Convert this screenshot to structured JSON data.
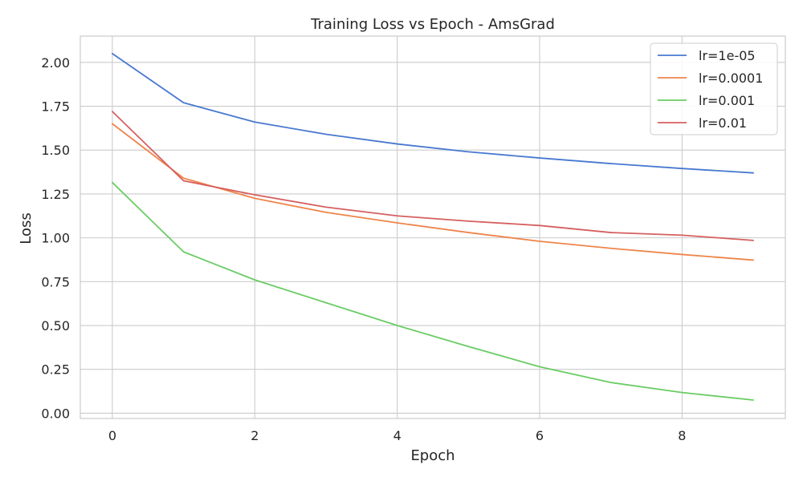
{
  "chart_data": {
    "type": "line",
    "title": "Training Loss vs Epoch - AmsGrad",
    "xlabel": "Epoch",
    "ylabel": "Loss",
    "x": [
      0,
      1,
      2,
      3,
      4,
      5,
      6,
      7,
      8,
      9
    ],
    "xlim": [
      -0.45,
      9.45
    ],
    "ylim": [
      -0.03,
      2.15
    ],
    "xticks": [
      0,
      2,
      4,
      6,
      8
    ],
    "xtick_labels": [
      "0",
      "2",
      "4",
      "6",
      "8"
    ],
    "yticks": [
      0.0,
      0.25,
      0.5,
      0.75,
      1.0,
      1.25,
      1.5,
      1.75,
      2.0
    ],
    "ytick_labels": [
      "0.00",
      "0.25",
      "0.50",
      "0.75",
      "1.00",
      "1.25",
      "1.50",
      "1.75",
      "2.00"
    ],
    "grid": true,
    "legend_position": "top-right",
    "series": [
      {
        "name": "lr=1e-05",
        "color": "#4878d0",
        "values": [
          2.05,
          1.77,
          1.66,
          1.59,
          1.535,
          1.49,
          1.455,
          1.423,
          1.395,
          1.37
        ]
      },
      {
        "name": "lr=0.0001",
        "color": "#ee854a",
        "values": [
          1.65,
          1.34,
          1.225,
          1.145,
          1.085,
          1.03,
          0.98,
          0.94,
          0.905,
          0.873
        ]
      },
      {
        "name": "lr=0.001",
        "color": "#6acc64",
        "values": [
          1.315,
          0.92,
          0.76,
          0.63,
          0.5,
          0.38,
          0.265,
          0.175,
          0.118,
          0.075
        ]
      },
      {
        "name": "lr=0.01",
        "color": "#d65f5f",
        "values": [
          1.72,
          1.325,
          1.245,
          1.175,
          1.125,
          1.095,
          1.07,
          1.03,
          1.015,
          0.985
        ]
      }
    ]
  }
}
